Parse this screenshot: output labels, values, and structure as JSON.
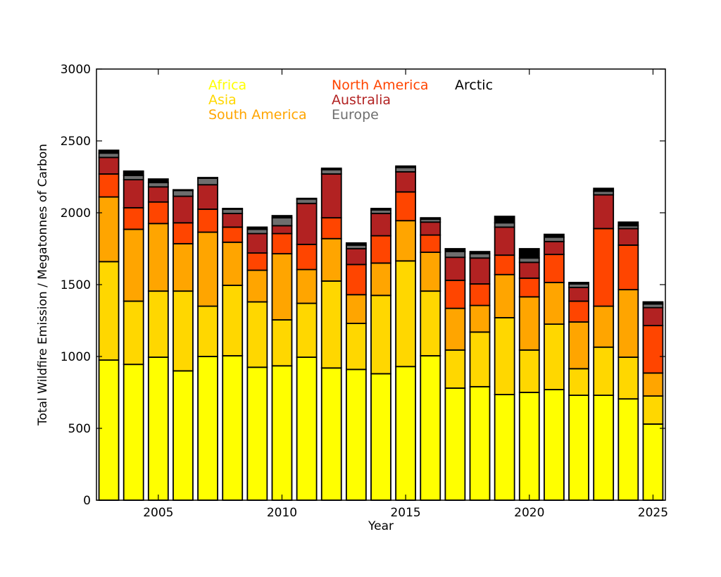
{
  "chart_data": {
    "type": "bar",
    "stacked": true,
    "title": "",
    "xlabel": "Year",
    "ylabel": "Total Wildfire Emission / Megatonnes of Carbon",
    "ylim": [
      0,
      3000
    ],
    "xlim": [
      2002.5,
      2025.5
    ],
    "yticks": [
      0,
      500,
      1000,
      1500,
      2000,
      2500,
      3000
    ],
    "xticks": [
      2005,
      2010,
      2015,
      2020,
      2025
    ],
    "grid": false,
    "legend_placement": "top",
    "categories": [
      2003,
      2004,
      2005,
      2006,
      2007,
      2008,
      2009,
      2010,
      2011,
      2012,
      2013,
      2014,
      2015,
      2016,
      2017,
      2018,
      2019,
      2020,
      2021,
      2022,
      2023,
      2024,
      2025
    ],
    "series": [
      {
        "name": "Africa",
        "color": "#ffff00",
        "values": [
          975,
          945,
          995,
          900,
          1000,
          1005,
          925,
          935,
          995,
          920,
          910,
          880,
          930,
          1005,
          780,
          790,
          735,
          750,
          770,
          730,
          730,
          705,
          530
        ]
      },
      {
        "name": "Asia",
        "color": "#ffd700",
        "values": [
          685,
          440,
          460,
          555,
          350,
          490,
          455,
          320,
          375,
          605,
          320,
          545,
          735,
          450,
          265,
          380,
          535,
          295,
          455,
          185,
          335,
          290,
          195
        ]
      },
      {
        "name": "South America",
        "color": "#ffa500",
        "values": [
          450,
          500,
          470,
          330,
          515,
          300,
          220,
          460,
          235,
          295,
          200,
          225,
          280,
          270,
          290,
          185,
          300,
          370,
          290,
          325,
          285,
          470,
          160
        ]
      },
      {
        "name": "North America",
        "color": "#ff4500",
        "values": [
          160,
          150,
          150,
          145,
          160,
          105,
          120,
          140,
          175,
          145,
          210,
          190,
          200,
          120,
          195,
          150,
          135,
          130,
          195,
          145,
          540,
          310,
          330
        ]
      },
      {
        "name": "Australia",
        "color": "#b22222",
        "values": [
          115,
          195,
          105,
          185,
          170,
          95,
          135,
          55,
          285,
          305,
          110,
          155,
          140,
          90,
          160,
          180,
          195,
          110,
          90,
          95,
          235,
          115,
          125
        ]
      },
      {
        "name": "Europe",
        "color": "#6e6e6e",
        "values": [
          30,
          30,
          30,
          40,
          45,
          30,
          30,
          55,
          30,
          30,
          25,
          25,
          30,
          20,
          40,
          30,
          30,
          30,
          30,
          25,
          25,
          20,
          25
        ]
      },
      {
        "name": "Arctic",
        "color": "#000000",
        "values": [
          20,
          30,
          25,
          5,
          5,
          5,
          15,
          15,
          5,
          10,
          15,
          10,
          10,
          10,
          20,
          15,
          45,
          65,
          20,
          10,
          20,
          25,
          15
        ]
      }
    ]
  }
}
